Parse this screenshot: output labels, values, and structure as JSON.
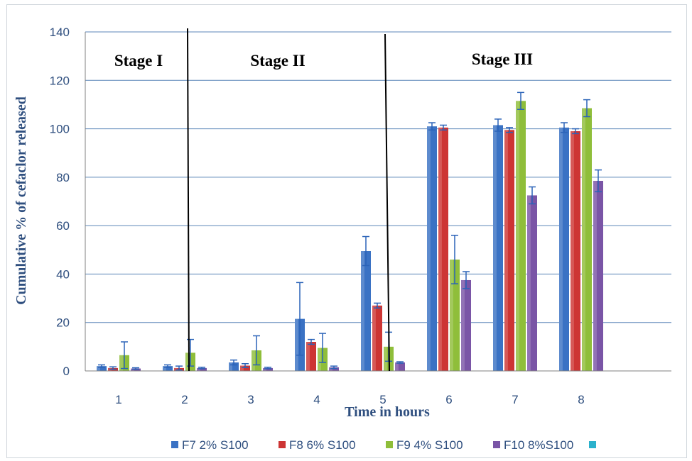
{
  "chart_data": {
    "type": "bar",
    "xlabel": "Time in hours",
    "ylabel": "Cumulative % of cefaclor released",
    "ylim": [
      0,
      140
    ],
    "yticks": [
      0,
      20,
      40,
      60,
      80,
      100,
      120,
      140
    ],
    "categories": [
      "1",
      "2",
      "3",
      "4",
      "5",
      "6",
      "7",
      "8"
    ],
    "grid": true,
    "legend_position": "bottom",
    "stage_labels": [
      {
        "text": "Stage I",
        "x_after": 0.5
      },
      {
        "text": "Stage II",
        "x_after": 3.0
      },
      {
        "text": "Stage  III",
        "x_after": 6.5
      }
    ],
    "stage_dividers": [
      2.05,
      5.05
    ],
    "series": [
      {
        "name": "F7 2% S100",
        "color": "#3a72c4",
        "values": [
          2,
          2,
          3.5,
          21.5,
          49.5,
          101,
          101.5,
          100.5
        ],
        "errors": [
          0.5,
          0.5,
          1,
          15,
          6,
          1.5,
          2.5,
          2
        ]
      },
      {
        "name": "F8 6% S100",
        "color": "#cd3534",
        "values": [
          1.2,
          1.2,
          2.2,
          12,
          27,
          100.5,
          99.5,
          99
        ],
        "errors": [
          0.5,
          0.8,
          0.8,
          1,
          1,
          1,
          1,
          1
        ]
      },
      {
        "name": "F9 4% S100",
        "color": "#8fbe3a",
        "values": [
          6.5,
          7.5,
          8.5,
          9.5,
          10,
          46,
          111.5,
          108.5
        ],
        "errors": [
          5.5,
          5.5,
          6,
          6,
          6,
          10,
          3.5,
          3.5
        ]
      },
      {
        "name": "F10 8%S100",
        "color": "#7a55a6",
        "values": [
          1,
          1.2,
          1.2,
          1.5,
          3.5,
          37.5,
          72.5,
          78.5
        ],
        "errors": [
          0.3,
          0.3,
          0.3,
          0.5,
          0.3,
          3.5,
          3.5,
          4.5
        ]
      },
      {
        "name": "",
        "color": "#2bb1cc",
        "values": [
          0,
          0,
          0,
          0,
          0,
          0,
          0,
          0
        ]
      }
    ]
  }
}
